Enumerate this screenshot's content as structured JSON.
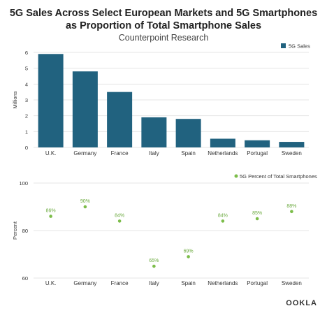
{
  "header": {
    "title_line1": "5G Sales Across Select European Markets and 5G Smartphones",
    "title_line2": "as Proportion of Total Smartphone Sales",
    "subtitle": "Counterpoint Research"
  },
  "logo_text": "OOKLA",
  "colors": {
    "bar": "#21627f",
    "dot": "#7cbd4a",
    "dot_label": "#6aa93d",
    "grid": "#e4e4e4",
    "text": "#333333"
  },
  "chart_data": [
    {
      "type": "bar",
      "title": "",
      "categories": [
        "U.K.",
        "Germany",
        "France",
        "Italy",
        "Spain",
        "Netherlands",
        "Portugal",
        "Sweden"
      ],
      "series": [
        {
          "name": "5G Sales",
          "values": [
            5.9,
            4.8,
            3.5,
            1.9,
            1.8,
            0.55,
            0.45,
            0.35
          ]
        }
      ],
      "xlabel": "",
      "ylabel": "Millions",
      "ylim": [
        0,
        6
      ],
      "yticks": [
        0,
        1,
        2,
        3,
        4,
        5,
        6
      ],
      "grid": true,
      "legend": "top-right"
    },
    {
      "type": "scatter",
      "title": "",
      "categories": [
        "U.K.",
        "Germany",
        "France",
        "Italy",
        "Spain",
        "Netherlands",
        "Portugal",
        "Sweden"
      ],
      "series": [
        {
          "name": "5G Percent of Total Smartphones",
          "values": [
            86,
            90,
            84,
            65,
            69,
            84,
            85,
            88
          ],
          "labels": [
            "86%",
            "90%",
            "84%",
            "65%",
            "69%",
            "84%",
            "85%",
            "88%"
          ]
        }
      ],
      "xlabel": "",
      "ylabel": "Percent",
      "ylim": [
        60,
        100
      ],
      "yticks": [
        60,
        80,
        100
      ],
      "grid": true,
      "legend": "top-right"
    }
  ]
}
